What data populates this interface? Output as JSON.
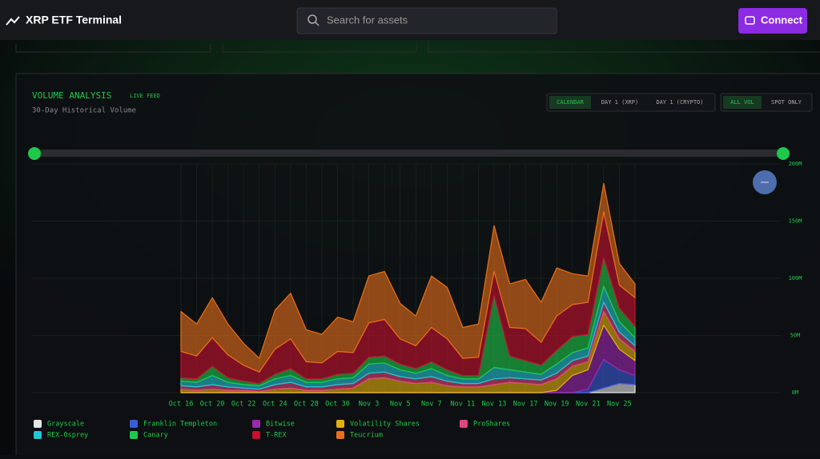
{
  "header": {
    "title": "XRP ETF Terminal",
    "search_placeholder": "Search for assets",
    "connect": "Connect"
  },
  "panel": {
    "title": "VOLUME ANALYSIS",
    "badge": "LIVE FEED",
    "subtitle": "30-Day Historical Volume",
    "view_buttons": [
      "CALENDAR",
      "DAY 1 (XRP)",
      "DAY 1 (CRYPTO)"
    ],
    "volume_buttons": [
      "ALL VOL",
      "SPOT ONLY"
    ]
  },
  "chart_data": {
    "type": "stacked-area",
    "categories": [
      "Oct 16",
      null,
      "Oct 20",
      null,
      "Oct 22",
      null,
      "Oct 24",
      null,
      "Oct 28",
      null,
      "Oct 30",
      null,
      "Nov 3",
      null,
      "Nov 5",
      null,
      "Nov 7",
      null,
      "Nov 11",
      null,
      "Nov 13",
      null,
      "Nov 17",
      null,
      "Nov 19",
      null,
      "Nov 21",
      null,
      "Nov 25",
      null
    ],
    "ylim": [
      0,
      200
    ],
    "yticks": [
      {
        "value": 0,
        "label": "0M"
      },
      {
        "value": 50,
        "label": "50M"
      },
      {
        "value": 100,
        "label": "100M"
      },
      {
        "value": 150,
        "label": "150M"
      },
      {
        "value": 200,
        "label": "200M"
      }
    ],
    "grid": true,
    "series": [
      {
        "name": "Grayscale",
        "color": "#e6e6e6",
        "values": [
          0,
          0,
          0,
          0,
          0,
          0,
          0,
          0,
          0,
          0,
          0,
          0,
          0,
          0,
          0,
          0,
          0,
          0,
          0,
          0,
          0,
          0,
          0,
          0,
          0,
          0,
          0,
          4,
          8,
          7
        ]
      },
      {
        "name": "Franklin Templeton",
        "color": "#3b5bdb",
        "values": [
          0,
          0,
          0,
          0,
          0,
          0,
          0,
          0,
          0,
          0,
          0,
          0,
          0,
          0,
          0,
          0,
          0,
          0,
          0,
          0,
          0,
          0,
          0,
          0,
          0,
          0,
          3,
          25,
          12,
          8
        ]
      },
      {
        "name": "Bitwise",
        "color": "#9c27b0",
        "values": [
          0,
          0,
          0,
          0,
          0,
          0,
          0,
          0,
          0,
          0,
          0,
          0,
          0,
          0,
          0,
          0,
          0,
          0,
          0,
          0,
          0,
          0,
          0,
          0,
          2,
          15,
          17,
          30,
          18,
          13
        ]
      },
      {
        "name": "Volatility Shares",
        "color": "#e5b00a",
        "values": [
          3,
          2,
          3,
          2,
          2,
          1,
          3,
          4,
          2,
          2,
          3,
          4,
          12,
          13,
          10,
          8,
          9,
          6,
          5,
          5,
          7,
          9,
          8,
          7,
          10,
          8,
          7,
          12,
          9,
          8
        ]
      },
      {
        "name": "ProShares",
        "color": "#e0457b",
        "values": [
          3,
          3,
          4,
          3,
          2,
          2,
          4,
          5,
          3,
          3,
          4,
          4,
          5,
          5,
          4,
          4,
          5,
          4,
          3,
          3,
          5,
          4,
          4,
          4,
          5,
          5,
          5,
          8,
          6,
          5
        ]
      },
      {
        "name": "REX-Osprey",
        "color": "#22c7d6",
        "values": [
          4,
          4,
          8,
          4,
          3,
          3,
          5,
          6,
          4,
          4,
          5,
          5,
          8,
          8,
          6,
          5,
          7,
          5,
          4,
          4,
          10,
          7,
          6,
          5,
          8,
          7,
          7,
          14,
          9,
          7
        ]
      },
      {
        "name": "Canary",
        "color": "#1fc84a",
        "values": [
          3,
          3,
          8,
          4,
          3,
          2,
          4,
          6,
          3,
          3,
          4,
          4,
          6,
          6,
          5,
          4,
          6,
          5,
          3,
          3,
          63,
          12,
          10,
          8,
          12,
          14,
          12,
          25,
          12,
          10
        ]
      },
      {
        "name": "T-REX",
        "color": "#c8102e",
        "values": [
          23,
          20,
          25,
          20,
          14,
          10,
          22,
          26,
          15,
          14,
          20,
          18,
          30,
          32,
          22,
          20,
          30,
          27,
          15,
          16,
          21,
          25,
          28,
          20,
          30,
          28,
          28,
          40,
          20,
          25
        ]
      },
      {
        "name": "Teucrium",
        "color": "#e8701a",
        "values": [
          35,
          28,
          35,
          27,
          19,
          12,
          34,
          40,
          28,
          25,
          30,
          27,
          41,
          42,
          31,
          26,
          45,
          45,
          27,
          29,
          40,
          38,
          43,
          35,
          42,
          27,
          23,
          25,
          19,
          12
        ]
      }
    ]
  }
}
